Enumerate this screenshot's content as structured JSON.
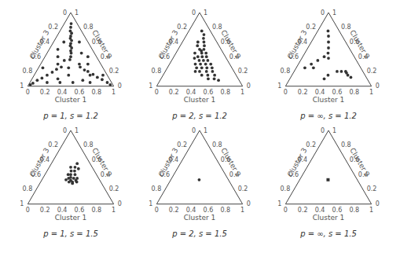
{
  "chart_data": [
    {
      "type": "ternary",
      "title": "p = 1, s = 1.2",
      "axis_labels": [
        "Cluster 1",
        "Cluster 2",
        "Cluster 3"
      ],
      "ticks": [
        0,
        0.2,
        0.4,
        0.6,
        0.8,
        1
      ],
      "color": "#333333",
      "marker": "circle",
      "points": [
        [
          0.08,
          0.85,
          0.07
        ],
        [
          0.1,
          0.8,
          0.1
        ],
        [
          0.12,
          0.75,
          0.13
        ],
        [
          0.15,
          0.72,
          0.13
        ],
        [
          0.16,
          0.68,
          0.16
        ],
        [
          0.17,
          0.65,
          0.18
        ],
        [
          0.2,
          0.62,
          0.18
        ],
        [
          0.21,
          0.58,
          0.21
        ],
        [
          0.22,
          0.55,
          0.23
        ],
        [
          0.25,
          0.52,
          0.23
        ],
        [
          0.26,
          0.48,
          0.26
        ],
        [
          0.28,
          0.45,
          0.27
        ],
        [
          0.3,
          0.4,
          0.3
        ],
        [
          0.31,
          0.36,
          0.33
        ],
        [
          0.9,
          0.05,
          0.05
        ],
        [
          0.82,
          0.09,
          0.09
        ],
        [
          0.75,
          0.12,
          0.13
        ],
        [
          0.68,
          0.16,
          0.16
        ],
        [
          0.6,
          0.2,
          0.2
        ],
        [
          0.55,
          0.22,
          0.23
        ],
        [
          0.48,
          0.26,
          0.26
        ],
        [
          0.04,
          0.04,
          0.92
        ],
        [
          0.07,
          0.08,
          0.85
        ],
        [
          0.11,
          0.11,
          0.78
        ],
        [
          0.15,
          0.15,
          0.7
        ],
        [
          0.19,
          0.19,
          0.62
        ],
        [
          0.22,
          0.23,
          0.55
        ],
        [
          0.26,
          0.26,
          0.48
        ],
        [
          0.3,
          0.1,
          0.6
        ],
        [
          0.5,
          0.05,
          0.45
        ],
        [
          0.6,
          0.08,
          0.32
        ],
        [
          0.4,
          0.15,
          0.45
        ],
        [
          0.7,
          0.05,
          0.25
        ],
        [
          0.2,
          0.05,
          0.75
        ],
        [
          0.45,
          0.3,
          0.25
        ],
        [
          0.35,
          0.25,
          0.4
        ],
        [
          0.55,
          0.3,
          0.15
        ],
        [
          0.25,
          0.35,
          0.4
        ],
        [
          0.15,
          0.4,
          0.45
        ],
        [
          0.4,
          0.45,
          0.15
        ],
        [
          0.1,
          0.5,
          0.4
        ],
        [
          0.5,
          0.4,
          0.1
        ],
        [
          0.3,
          0.6,
          0.1
        ],
        [
          0.12,
          0.6,
          0.28
        ],
        [
          0.65,
          0.15,
          0.2
        ],
        [
          0.2,
          0.3,
          0.5
        ],
        [
          0.95,
          0.02,
          0.03
        ],
        [
          0.02,
          0.02,
          0.96
        ],
        [
          0.35,
          0.05,
          0.6
        ],
        [
          0.8,
          0.15,
          0.05
        ],
        [
          0.05,
          0.25,
          0.7
        ]
      ]
    },
    {
      "type": "ternary",
      "title": "p = 2, s = 1.2",
      "axis_labels": [
        "Cluster 1",
        "Cluster 2",
        "Cluster 3"
      ],
      "ticks": [
        0,
        0.2,
        0.4,
        0.6,
        0.8,
        1
      ],
      "color": "#333333",
      "marker": "circle",
      "points": [
        [
          0.2,
          0.7,
          0.1
        ],
        [
          0.15,
          0.75,
          0.1
        ],
        [
          0.22,
          0.65,
          0.13
        ],
        [
          0.18,
          0.6,
          0.22
        ],
        [
          0.25,
          0.6,
          0.15
        ],
        [
          0.2,
          0.55,
          0.25
        ],
        [
          0.28,
          0.55,
          0.17
        ],
        [
          0.25,
          0.5,
          0.25
        ],
        [
          0.3,
          0.5,
          0.2
        ],
        [
          0.22,
          0.45,
          0.33
        ],
        [
          0.3,
          0.45,
          0.25
        ],
        [
          0.35,
          0.45,
          0.2
        ],
        [
          0.28,
          0.4,
          0.32
        ],
        [
          0.33,
          0.4,
          0.27
        ],
        [
          0.38,
          0.4,
          0.22
        ],
        [
          0.25,
          0.38,
          0.37
        ],
        [
          0.32,
          0.35,
          0.33
        ],
        [
          0.37,
          0.35,
          0.28
        ],
        [
          0.42,
          0.35,
          0.23
        ],
        [
          0.3,
          0.3,
          0.4
        ],
        [
          0.36,
          0.3,
          0.34
        ],
        [
          0.42,
          0.3,
          0.28
        ],
        [
          0.48,
          0.3,
          0.22
        ],
        [
          0.34,
          0.25,
          0.41
        ],
        [
          0.4,
          0.25,
          0.35
        ],
        [
          0.46,
          0.25,
          0.29
        ],
        [
          0.52,
          0.25,
          0.23
        ],
        [
          0.4,
          0.2,
          0.4
        ],
        [
          0.48,
          0.2,
          0.32
        ],
        [
          0.55,
          0.2,
          0.25
        ],
        [
          0.45,
          0.15,
          0.4
        ],
        [
          0.52,
          0.15,
          0.33
        ],
        [
          0.6,
          0.15,
          0.25
        ],
        [
          0.55,
          0.1,
          0.35
        ],
        [
          0.62,
          0.1,
          0.28
        ],
        [
          0.68,
          0.08,
          0.24
        ],
        [
          0.35,
          0.2,
          0.45
        ],
        [
          0.28,
          0.48,
          0.24
        ]
      ]
    },
    {
      "type": "ternary",
      "title": "p = ∞, s = 1.2",
      "axis_labels": [
        "Cluster 1",
        "Cluster 2",
        "Cluster 3"
      ],
      "ticks": [
        0,
        0.2,
        0.4,
        0.6,
        0.8,
        1
      ],
      "color": "#333333",
      "marker": "circle",
      "points": [
        [
          0.12,
          0.75,
          0.13
        ],
        [
          0.16,
          0.68,
          0.16
        ],
        [
          0.2,
          0.6,
          0.2
        ],
        [
          0.24,
          0.52,
          0.24
        ],
        [
          0.27,
          0.45,
          0.28
        ],
        [
          0.31,
          0.38,
          0.31
        ],
        [
          0.2,
          0.35,
          0.45
        ],
        [
          0.15,
          0.3,
          0.55
        ],
        [
          0.25,
          0.4,
          0.35
        ],
        [
          0.1,
          0.25,
          0.65
        ],
        [
          0.2,
          0.25,
          0.55
        ],
        [
          0.6,
          0.2,
          0.2
        ],
        [
          0.55,
          0.2,
          0.25
        ],
        [
          0.65,
          0.15,
          0.2
        ],
        [
          0.62,
          0.18,
          0.2
        ],
        [
          0.7,
          0.12,
          0.18
        ],
        [
          0.5,
          0.2,
          0.3
        ],
        [
          0.4,
          0.1,
          0.5
        ],
        [
          0.42,
          0.15,
          0.43
        ]
      ]
    },
    {
      "type": "ternary",
      "title": "p = 1, s = 1.5",
      "axis_labels": [
        "Cluster 1",
        "Cluster 2",
        "Cluster 3"
      ],
      "ticks": [
        0,
        0.2,
        0.4,
        0.6,
        0.8,
        1
      ],
      "color": "#333333",
      "marker": "circle",
      "points": [
        [
          0.3,
          0.5,
          0.2
        ],
        [
          0.28,
          0.45,
          0.27
        ],
        [
          0.32,
          0.45,
          0.23
        ],
        [
          0.3,
          0.4,
          0.3
        ],
        [
          0.35,
          0.4,
          0.25
        ],
        [
          0.27,
          0.4,
          0.33
        ],
        [
          0.32,
          0.36,
          0.32
        ],
        [
          0.36,
          0.35,
          0.29
        ],
        [
          0.3,
          0.35,
          0.35
        ],
        [
          0.4,
          0.32,
          0.28
        ],
        [
          0.34,
          0.32,
          0.34
        ],
        [
          0.37,
          0.3,
          0.33
        ],
        [
          0.42,
          0.3,
          0.28
        ],
        [
          0.33,
          0.3,
          0.37
        ],
        [
          0.38,
          0.28,
          0.34
        ],
        [
          0.3,
          0.55,
          0.15
        ],
        [
          0.25,
          0.5,
          0.25
        ],
        [
          0.35,
          0.48,
          0.17
        ],
        [
          0.4,
          0.35,
          0.25
        ],
        [
          0.28,
          0.33,
          0.39
        ]
      ]
    },
    {
      "type": "ternary",
      "title": "p = 2, s = 1.5",
      "axis_labels": [
        "Cluster 1",
        "Cluster 2",
        "Cluster 3"
      ],
      "ticks": [
        0,
        0.2,
        0.4,
        0.6,
        0.8,
        1
      ],
      "color": "#333333",
      "marker": "circle",
      "points": [
        [
          0.33,
          0.33,
          0.34
        ]
      ]
    },
    {
      "type": "ternary",
      "title": "p = ∞, s = 1.5",
      "axis_labels": [
        "Cluster 1",
        "Cluster 2",
        "Cluster 3"
      ],
      "ticks": [
        0,
        0.2,
        0.4,
        0.6,
        0.8,
        1
      ],
      "color": "#333333",
      "marker": "square",
      "points": [
        [
          0.33,
          0.33,
          0.34
        ]
      ]
    }
  ]
}
